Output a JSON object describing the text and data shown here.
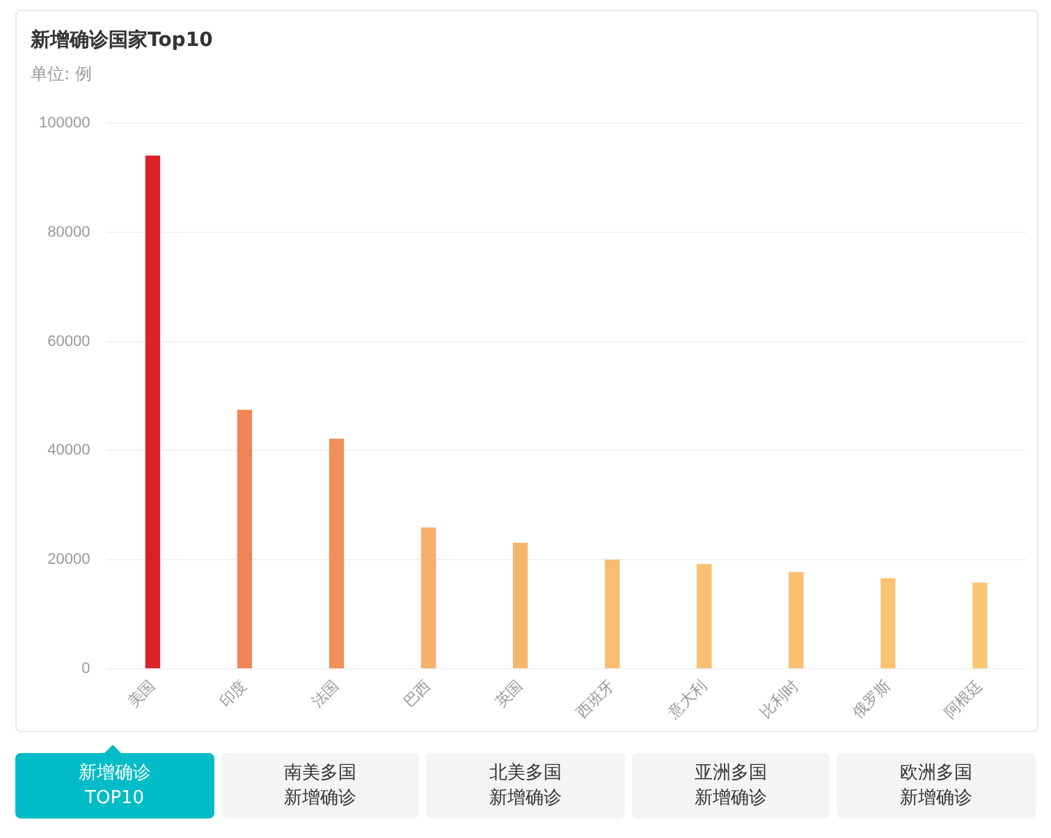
{
  "chart_data": {
    "type": "bar",
    "title": "新增确诊国家Top10",
    "subtitle": "单位: 例",
    "categories": [
      "美国",
      "印度",
      "法国",
      "巴西",
      "英国",
      "西班牙",
      "意大利",
      "比利时",
      "俄罗斯",
      "阿根廷"
    ],
    "values": [
      94000,
      47400,
      42100,
      25800,
      23000,
      19900,
      19100,
      17600,
      16500,
      15700
    ],
    "colors": [
      "#dc2126",
      "#ef8456",
      "#f0905a",
      "#f5b06a",
      "#f6b56c",
      "#f8bd6e",
      "#f9be6f",
      "#f9c070",
      "#fac372",
      "#fbc573"
    ],
    "ylim": [
      0,
      100000
    ],
    "yticks": [
      0,
      20000,
      40000,
      60000,
      80000,
      100000
    ],
    "grid": "y",
    "legend": false,
    "annotations": [
      "新增确诊TOP10",
      "南美多国新增确诊",
      "北美多国新增确诊",
      "亚洲多国新增确诊",
      "欧洲多国新增确诊"
    ]
  }
}
